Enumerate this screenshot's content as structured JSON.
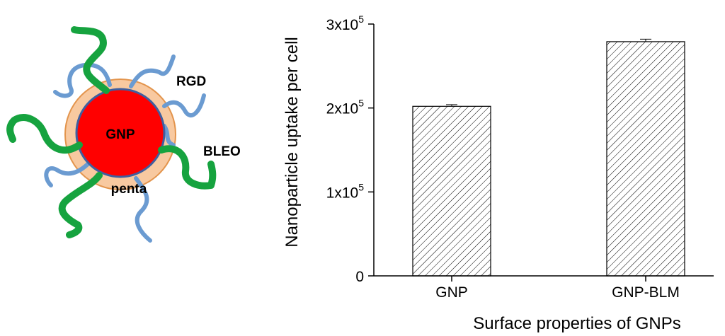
{
  "schematic": {
    "core_label": "GNP",
    "shell_label": "penta",
    "ligand_labels": {
      "rgd": "RGD",
      "bleo": "BLEO"
    },
    "colors": {
      "core": "#ff0000",
      "shell": "#f8c9a0",
      "shell_edge": "#e3944c",
      "rgd": "#6b9bd1",
      "bleo": "#16a33f"
    }
  },
  "chart_data": {
    "type": "bar",
    "categories": [
      "GNP",
      "GNP-BLM"
    ],
    "values": [
      202000,
      279000
    ],
    "errors": [
      2000,
      3000
    ],
    "ylim": [
      0,
      300000
    ],
    "yticks": [
      {
        "value": 0,
        "mantissa": "0",
        "exp": ""
      },
      {
        "value": 100000,
        "mantissa": "1x10",
        "exp": "5"
      },
      {
        "value": 200000,
        "mantissa": "2x10",
        "exp": "5"
      },
      {
        "value": 300000,
        "mantissa": "3x10",
        "exp": "5"
      }
    ],
    "ylabel": "Nanoparticle uptake per cell",
    "xlabel": "Surface properties of GNPs",
    "bar_fill": "hatched",
    "grid": false
  }
}
